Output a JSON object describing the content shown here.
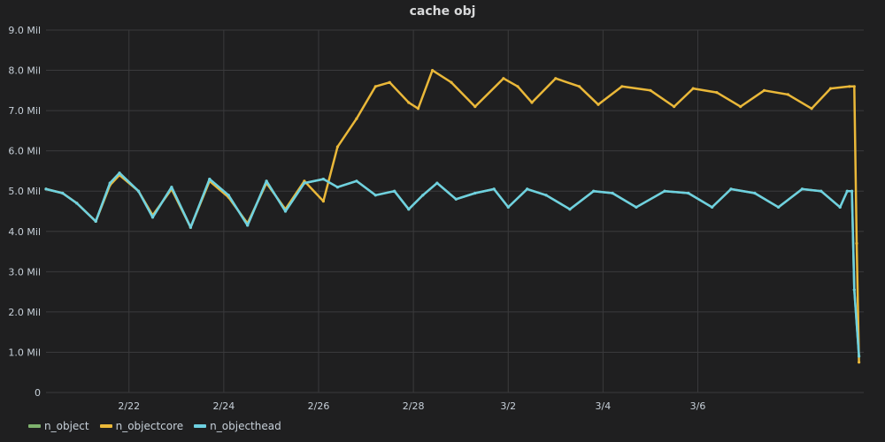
{
  "panel": {
    "title": "cache obj"
  },
  "colors": {
    "n_object": "#7eb26d",
    "n_objectcore": "#eab839",
    "n_objecthead": "#6ed0e0",
    "background": "#1f1f20",
    "grid": "#3a3a3c",
    "text": "#c7d0d9"
  },
  "legend": [
    {
      "name": "n_object",
      "color": "#7eb26d"
    },
    {
      "name": "n_objectcore",
      "color": "#eab839"
    },
    {
      "name": "n_objecthead",
      "color": "#6ed0e0"
    }
  ],
  "chart_data": {
    "type": "line",
    "title": "cache obj",
    "xlabel": "",
    "ylabel": "",
    "legend_position": "bottom-left",
    "grid": true,
    "x_unit": "days since 2/21 (x ticks at even dates)",
    "xlim": [
      -0.75,
      16.5
    ],
    "ylim": [
      0,
      9
    ],
    "y_unit": "Mil",
    "y_ticks": [
      "0",
      "1.0 Mil",
      "2.0 Mil",
      "3.0 Mil",
      "4.0 Mil",
      "5.0 Mil",
      "6.0 Mil",
      "7.0 Mil",
      "8.0 Mil",
      "9.0 Mil"
    ],
    "x_ticks": [
      {
        "value": 1,
        "label": "2/22"
      },
      {
        "value": 3,
        "label": "2/24"
      },
      {
        "value": 5,
        "label": "2/26"
      },
      {
        "value": 7,
        "label": "2/28"
      },
      {
        "value": 9,
        "label": "3/2"
      },
      {
        "value": 11,
        "label": "3/4"
      },
      {
        "value": 13,
        "label": "3/6"
      }
    ],
    "series": [
      {
        "name": "n_object",
        "color": "#7eb26d",
        "x": [
          -0.75,
          -0.4,
          -0.1,
          0.3,
          0.6,
          0.8,
          1.2,
          1.5,
          1.9,
          2.3,
          2.7,
          3.1,
          3.5,
          3.9,
          4.3,
          4.7,
          5.1,
          5.4,
          5.8,
          6.2,
          6.6,
          6.9,
          7.2,
          7.5,
          7.9,
          8.3,
          8.7,
          9.0,
          9.4,
          9.8,
          10.3,
          10.8,
          11.2,
          11.7,
          12.3,
          12.8,
          13.3,
          13.7,
          14.2,
          14.7,
          15.2,
          15.6,
          16.0,
          16.15,
          16.25,
          16.3,
          16.4
        ],
        "y": [
          5.05,
          4.95,
          4.7,
          4.25,
          5.2,
          5.45,
          5.0,
          4.35,
          5.1,
          4.1,
          5.3,
          4.9,
          4.15,
          5.25,
          4.5,
          5.2,
          5.3,
          5.1,
          5.25,
          4.9,
          5.0,
          4.55,
          4.9,
          5.2,
          4.8,
          4.95,
          5.05,
          4.6,
          5.05,
          4.9,
          4.55,
          5.0,
          4.95,
          4.6,
          5.0,
          4.95,
          4.6,
          5.05,
          4.95,
          4.6,
          5.05,
          5.0,
          4.6,
          5.0,
          5.0,
          2.55,
          0.9
        ]
      },
      {
        "name": "n_objectcore",
        "color": "#eab839",
        "x": [
          -0.75,
          -0.4,
          -0.1,
          0.3,
          0.6,
          0.8,
          1.2,
          1.5,
          1.9,
          2.3,
          2.7,
          3.1,
          3.5,
          3.9,
          4.3,
          4.7,
          5.1,
          5.4,
          5.8,
          6.2,
          6.5,
          6.9,
          7.1,
          7.4,
          7.8,
          8.3,
          8.9,
          9.2,
          9.5,
          10.0,
          10.5,
          10.9,
          11.4,
          12.0,
          12.5,
          12.9,
          13.4,
          13.9,
          14.4,
          14.9,
          15.4,
          15.8,
          16.2,
          16.3,
          16.35,
          16.4
        ],
        "y": [
          5.05,
          4.95,
          4.7,
          4.25,
          5.15,
          5.4,
          5.0,
          4.4,
          5.05,
          4.1,
          5.25,
          4.85,
          4.2,
          5.2,
          4.55,
          5.25,
          4.75,
          6.1,
          6.8,
          7.6,
          7.7,
          7.2,
          7.05,
          8.0,
          7.7,
          7.1,
          7.8,
          7.6,
          7.2,
          7.8,
          7.6,
          7.15,
          7.6,
          7.5,
          7.1,
          7.55,
          7.45,
          7.1,
          7.5,
          7.4,
          7.05,
          7.55,
          7.6,
          7.6,
          3.7,
          0.75
        ]
      },
      {
        "name": "n_objecthead",
        "color": "#6ed0e0",
        "x": [
          -0.75,
          -0.4,
          -0.1,
          0.3,
          0.6,
          0.8,
          1.2,
          1.5,
          1.9,
          2.3,
          2.7,
          3.1,
          3.5,
          3.9,
          4.3,
          4.7,
          5.1,
          5.4,
          5.8,
          6.2,
          6.6,
          6.9,
          7.2,
          7.5,
          7.9,
          8.3,
          8.7,
          9.0,
          9.4,
          9.8,
          10.3,
          10.8,
          11.2,
          11.7,
          12.3,
          12.8,
          13.3,
          13.7,
          14.2,
          14.7,
          15.2,
          15.6,
          16.0,
          16.15,
          16.25,
          16.3,
          16.4
        ],
        "y": [
          5.05,
          4.95,
          4.7,
          4.25,
          5.2,
          5.45,
          5.0,
          4.35,
          5.1,
          4.1,
          5.3,
          4.9,
          4.15,
          5.25,
          4.5,
          5.2,
          5.3,
          5.1,
          5.25,
          4.9,
          5.0,
          4.55,
          4.9,
          5.2,
          4.8,
          4.95,
          5.05,
          4.6,
          5.05,
          4.9,
          4.55,
          5.0,
          4.95,
          4.6,
          5.0,
          4.95,
          4.6,
          5.05,
          4.95,
          4.6,
          5.05,
          5.0,
          4.6,
          5.0,
          5.0,
          2.55,
          0.9
        ]
      }
    ]
  }
}
